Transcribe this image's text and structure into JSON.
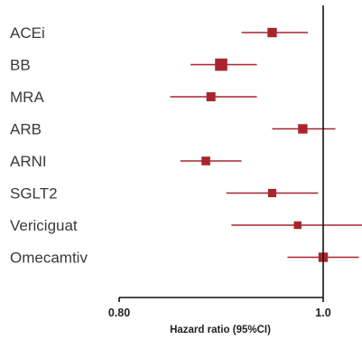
{
  "chart_data": {
    "type": "forest",
    "xlabel": "Hazard ratio (95%CI)",
    "xlim": [
      0.8,
      1.0
    ],
    "ticks": [
      {
        "value": 0.8,
        "label": "0.80"
      },
      {
        "value": 1.0,
        "label": "1.0"
      }
    ],
    "reference_line": 1.0,
    "grid": false,
    "series": [
      {
        "label": "ACEi",
        "estimate": 0.95,
        "lower": 0.92,
        "upper": 0.985,
        "weight": 0.55
      },
      {
        "label": "BB",
        "estimate": 0.9,
        "lower": 0.87,
        "upper": 0.935,
        "weight": 0.95
      },
      {
        "label": "MRA",
        "estimate": 0.89,
        "lower": 0.85,
        "upper": 0.935,
        "weight": 0.5
      },
      {
        "label": "ARB",
        "estimate": 0.98,
        "lower": 0.95,
        "upper": 1.012,
        "weight": 0.55
      },
      {
        "label": "ARNI",
        "estimate": 0.885,
        "lower": 0.86,
        "upper": 0.92,
        "weight": 0.45
      },
      {
        "label": "SGLT2",
        "estimate": 0.95,
        "lower": 0.905,
        "upper": 0.995,
        "weight": 0.4
      },
      {
        "label": "Vericiguat",
        "estimate": 0.975,
        "lower": 0.91,
        "upper": 1.04,
        "weight": 0.3
      },
      {
        "label": "Omecamtiv",
        "estimate": 1.0,
        "lower": 0.965,
        "upper": 1.035,
        "weight": 0.55
      }
    ],
    "colors": {
      "marker": "#a8262b",
      "axis": "#111111",
      "label": "#3a3a3a"
    }
  }
}
